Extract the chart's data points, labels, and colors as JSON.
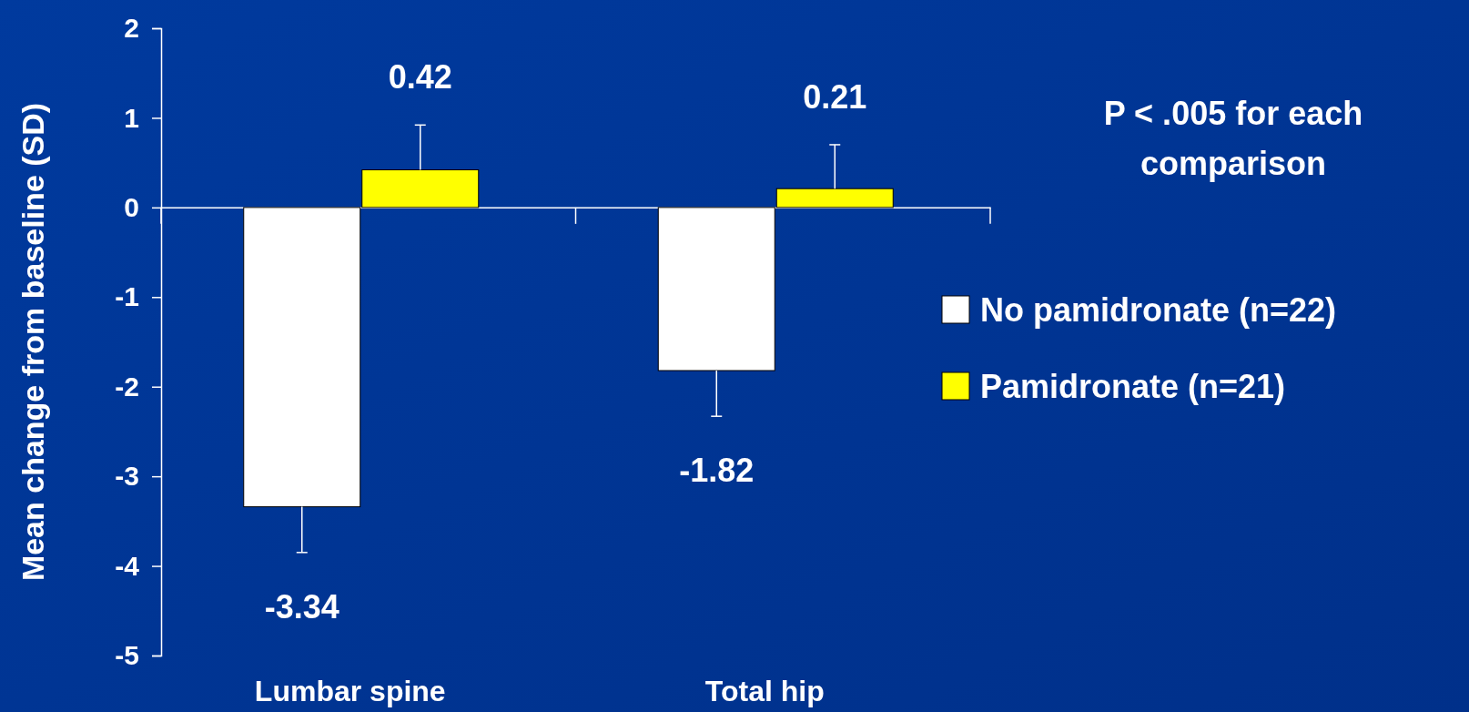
{
  "chart_data": {
    "type": "bar",
    "ylabel": "Mean change from baseline (SD)",
    "categories": [
      "Lumbar spine",
      "Total hip"
    ],
    "series": [
      {
        "name": "No pamidronate (n=22)",
        "color": "#ffffff",
        "values": [
          -3.34,
          -1.82
        ],
        "errors": [
          [
            -3.85,
            -3.34
          ],
          [
            -2.33,
            -1.82
          ]
        ]
      },
      {
        "name": "Pamidronate (n=21)",
        "color": "#ffff00",
        "values": [
          0.42,
          0.21
        ],
        "errors": [
          [
            0.42,
            0.92
          ],
          [
            0.21,
            0.7
          ]
        ]
      }
    ],
    "ylim": [
      -5,
      2
    ],
    "yticks": [
      -5,
      -4,
      -3,
      -2,
      -1,
      0,
      1,
      2
    ],
    "data_labels": true,
    "legend": "right",
    "annotations": [
      "P < .005 for each comparison"
    ]
  }
}
